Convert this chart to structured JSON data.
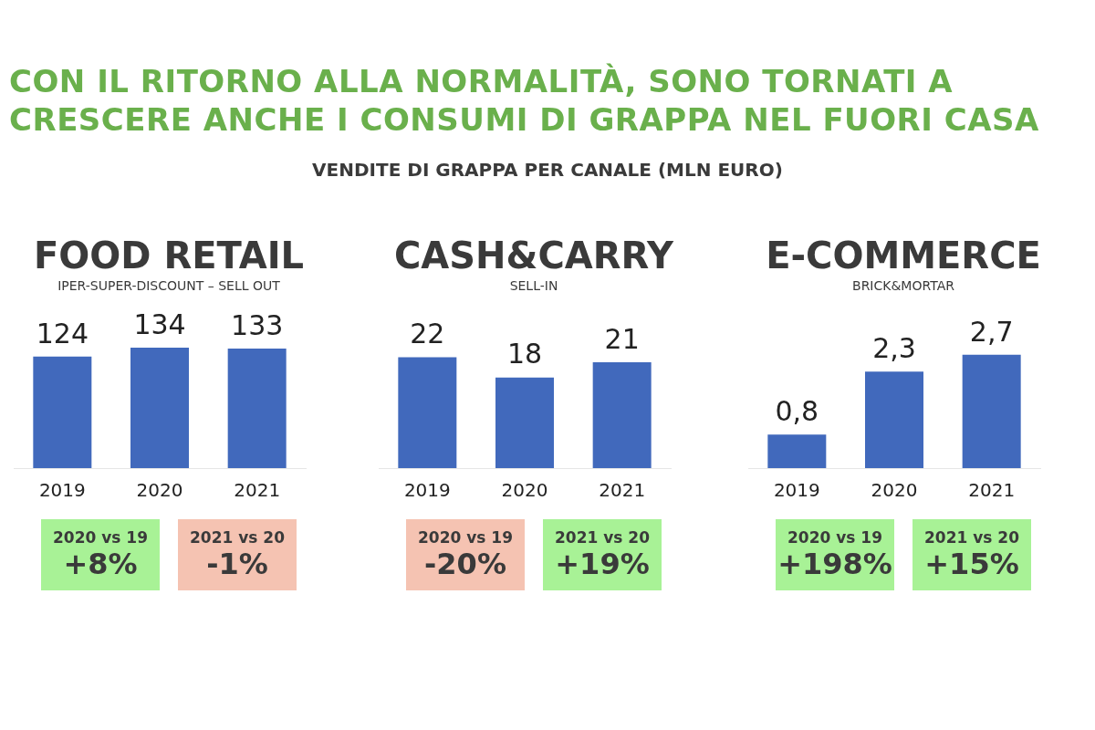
{
  "chart_data": [
    {
      "type": "other",
      "title": "CON IL RITORNO ALLA NORMALITÀ, SONO TORNATI A CRESCERE ANCHE I CONSUMI DI GRAPPA NEL FUORI CASA",
      "subtitle": "VENDITE DI GRAPPA PER CANALE (MLN EURO)"
    },
    {
      "type": "bar",
      "title": "FOOD RETAIL",
      "subtitle": "IPER-SUPER-DISCOUNT – SELL OUT",
      "categories": [
        "2019",
        "2020",
        "2021"
      ],
      "values": [
        124,
        134,
        133
      ],
      "color": "#4169bc",
      "data_labels": true,
      "tick_labels": "x",
      "grid": false,
      "legend": false,
      "annotations": [
        "2020 vs 19",
        "+8%",
        "2021 vs 20",
        "-1%"
      ]
    },
    {
      "type": "bar",
      "title": "CASH&CARRY",
      "subtitle": "SELL-IN",
      "categories": [
        "2019",
        "2020",
        "2021"
      ],
      "values": [
        22,
        18,
        21
      ],
      "color": "#4169bc",
      "data_labels": true,
      "tick_labels": "x",
      "grid": false,
      "legend": false,
      "annotations": [
        "2020 vs 19",
        "-20%",
        "2021 vs 20",
        "+19%"
      ]
    },
    {
      "type": "bar",
      "title": "E-COMMERCE",
      "subtitle": "BRICK&MORTAR",
      "categories": [
        "2019",
        "2020",
        "2021"
      ],
      "values": [
        0.8,
        2.3,
        2.7
      ],
      "value_labels": [
        "0,8",
        "2,3",
        "2,7"
      ],
      "color": "#4169bc",
      "tick_labels": "x",
      "grid": false,
      "legend": false,
      "annotations": [
        "2020 vs 19",
        "+198%",
        "2021 vs 20",
        "+15%"
      ]
    }
  ]
}
